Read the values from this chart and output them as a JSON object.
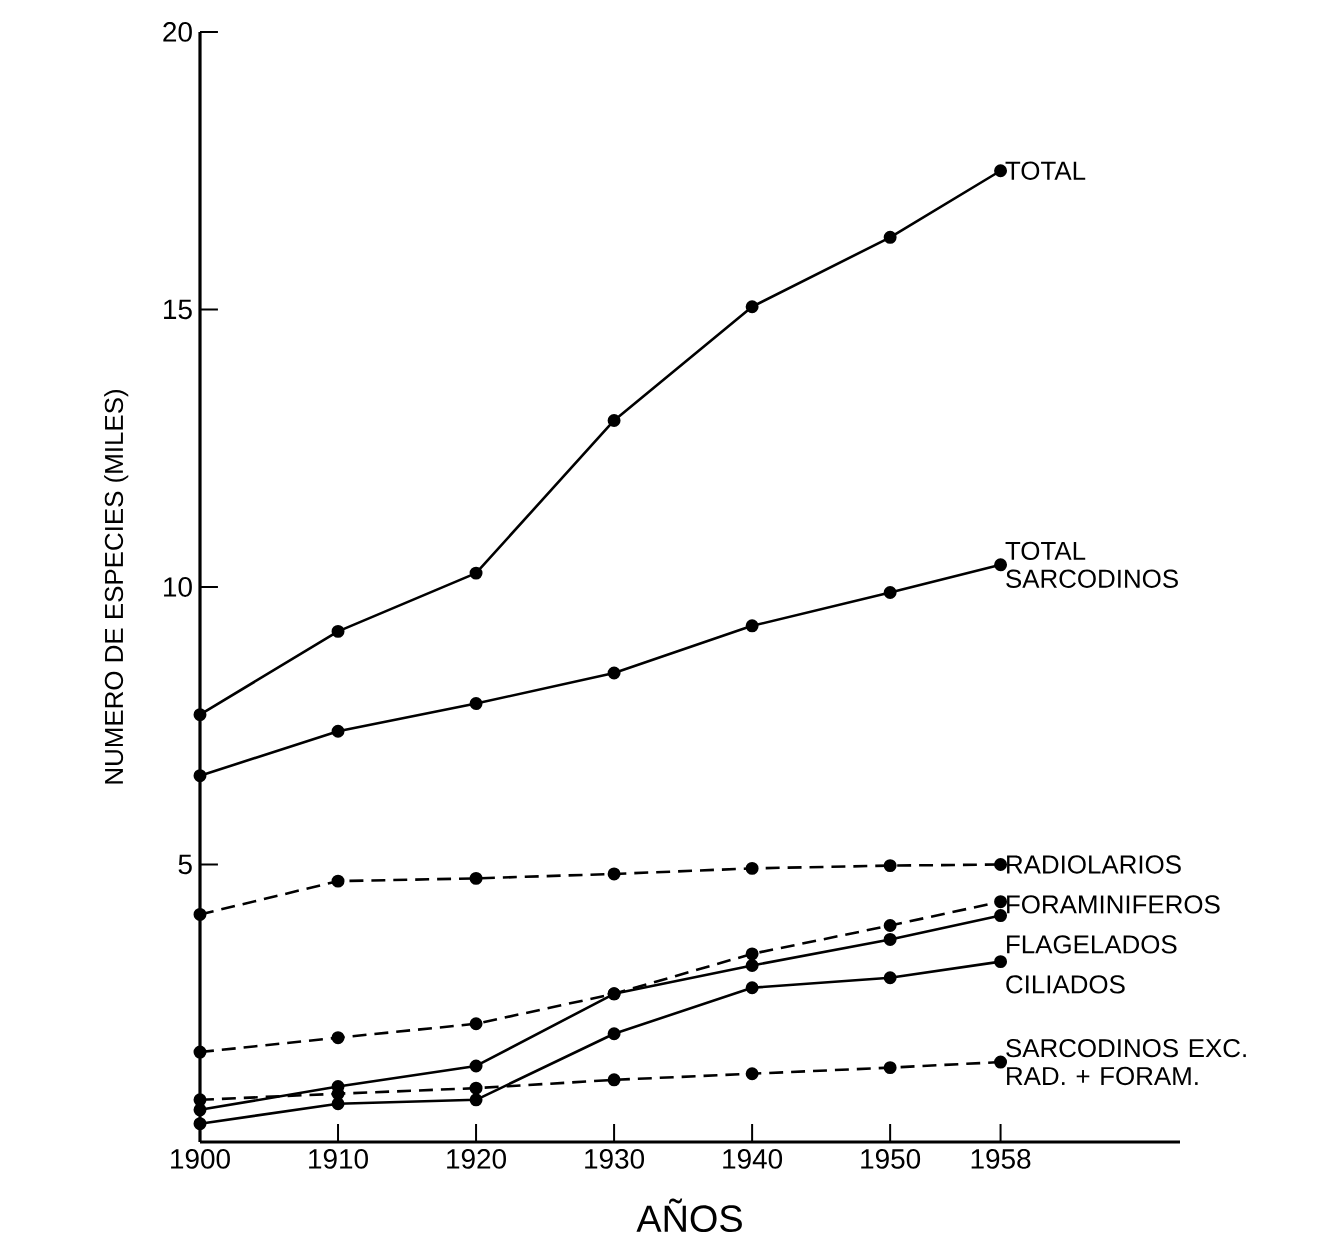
{
  "chart_data": {
    "type": "line",
    "xlabel": "AÑOS",
    "ylabel": "NUMERO DE ESPECIES (MILES)",
    "x": [
      1900,
      1910,
      1920,
      1930,
      1940,
      1950,
      1958
    ],
    "xlim": [
      1900,
      1971
    ],
    "xticks": [
      1900,
      1910,
      1920,
      1930,
      1940,
      1950,
      1958
    ],
    "ylim": [
      0,
      20
    ],
    "yticks": [
      5,
      10,
      15,
      20
    ],
    "marker": "circle",
    "series": [
      {
        "name": "TOTAL",
        "color": "#000000",
        "line_style": "solid",
        "values": [
          7.7,
          9.2,
          10.25,
          13.0,
          15.05,
          16.3,
          17.5
        ]
      },
      {
        "name": "TOTAL SARCODINOS",
        "color": "#000000",
        "line_style": "solid",
        "values": [
          6.6,
          7.4,
          7.9,
          8.45,
          9.3,
          9.9,
          10.4
        ]
      },
      {
        "name": "RADIOLARIOS",
        "color": "#000000",
        "line_style": "dashed",
        "values": [
          4.1,
          4.7,
          4.75,
          4.83,
          4.93,
          4.98,
          5.0
        ]
      },
      {
        "name": "FORAMINIFEROS",
        "color": "#000000",
        "line_style": "dashed",
        "values": [
          1.62,
          1.88,
          2.13,
          2.67,
          3.39,
          3.9,
          4.33
        ]
      },
      {
        "name": "FLAGELADOS",
        "color": "#000000",
        "line_style": "solid",
        "values": [
          0.58,
          1.0,
          1.37,
          2.67,
          3.18,
          3.65,
          4.08
        ]
      },
      {
        "name": "CILIADOS",
        "color": "#000000",
        "line_style": "solid",
        "values": [
          0.33,
          0.69,
          0.76,
          1.95,
          2.78,
          2.96,
          3.25
        ]
      },
      {
        "name": "SARCODINOS EXC. RAD. + FORAM.",
        "color": "#000000",
        "line_style": "dashed",
        "values": [
          0.76,
          0.87,
          0.97,
          1.12,
          1.23,
          1.34,
          1.44
        ]
      }
    ]
  }
}
